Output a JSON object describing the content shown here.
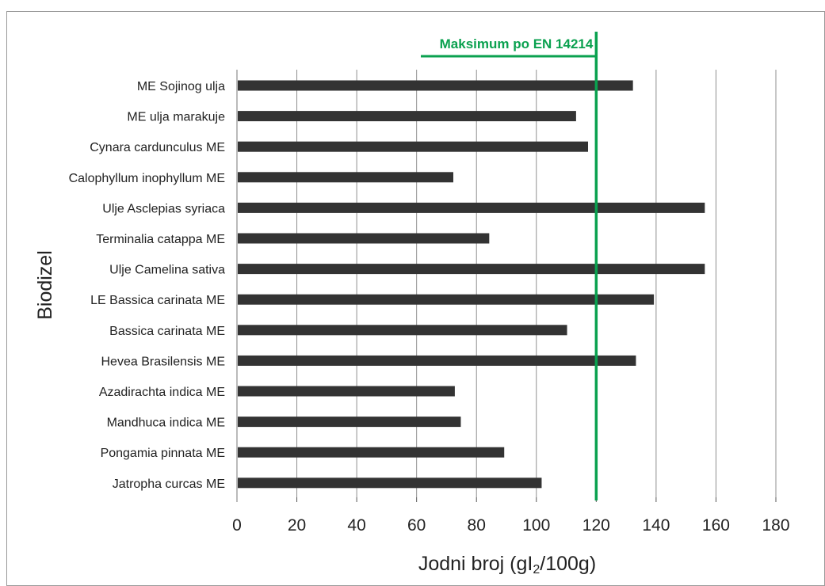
{
  "chart_data": {
    "type": "bar",
    "orientation": "horizontal",
    "categories": [
      "ME Sojinog ulja",
      "ME ulja marakuje",
      "Cynara cardunculus ME",
      "Calophyllum inophyllum  ME",
      "Ulje Asclepias syriaca",
      "Terminalia catappa ME",
      "Ulje Camelina sativa",
      "LE Bassica carinata ME",
      "Bassica carinata ME",
      "Hevea Brasilensis ME",
      "Azadirachta indica ME",
      "Mandhuca indica ME",
      "Pongamia pinnata ME",
      "Jatropha curcas ME"
    ],
    "values": [
      132,
      113,
      117,
      72,
      156,
      84,
      156,
      139,
      110,
      133,
      72.5,
      74.5,
      89,
      101.5
    ],
    "xlim": [
      0,
      180
    ],
    "xticks": [
      "0",
      "20",
      "40",
      "60",
      "80",
      "100",
      "120",
      "140",
      "160",
      "180"
    ],
    "xlabel_main": "Jodni broj (gI",
    "xlabel_sub": "2",
    "xlabel_tail": "/100g)",
    "ylabel": "Biodizel",
    "grid": true,
    "bar_color": "#333333",
    "reference_line": {
      "value": 120,
      "label": "Maksimum po EN 14214",
      "color": "#0aa14f"
    }
  }
}
